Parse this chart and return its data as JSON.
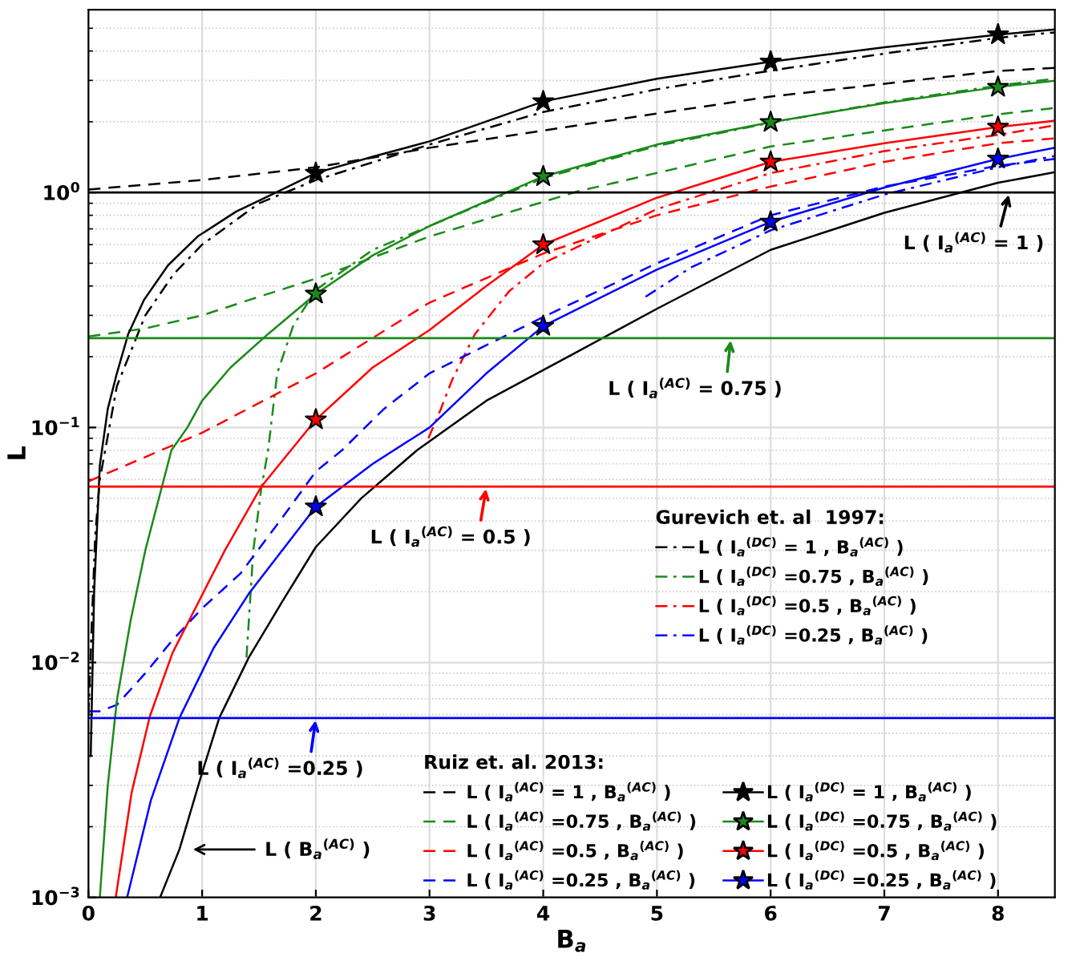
{
  "chart_data": {
    "type": "line",
    "xlabel": "B$_{a}$",
    "ylabel": "L",
    "xlim": [
      0,
      8.5
    ],
    "ylim": [
      0.001,
      6
    ],
    "xticks": [
      0,
      1,
      2,
      3,
      4,
      5,
      6,
      7,
      8
    ],
    "yticks": [
      {
        "value": 0.001,
        "label": "10$^{−3}$"
      },
      {
        "value": 0.01,
        "label": "10$^{−2}$"
      },
      {
        "value": 0.1,
        "label": "10$^{−1}$"
      },
      {
        "value": 1,
        "label": "10$^{0}$"
      }
    ],
    "log": "y",
    "grid": true,
    "legend": "bottom right",
    "annotations": [
      "Gurevich et. al  1997:",
      "Ruiz et. al. 2013:",
      {
        "text": "L ( I$_{a}$$^{(AC)}$ = 1 )",
        "x": 8.1,
        "y": 1
      },
      {
        "text": "L ( I$_{a}$$^{(AC)}$ = 0.75 )",
        "x": 5.65,
        "y": 0.24
      },
      {
        "text": "L ( I$_{a}$$^{(AC)}$ = 0.5 )",
        "x": 3.5,
        "y": 0.056
      },
      {
        "text": "L ( I$_{a}$$^{(AC)}$ =0.25 )",
        "x": 2.0,
        "y": 0.0058
      },
      "L ( B$_{a}$$^{(AC)}$ )"
    ],
    "ref_lines": [
      {
        "axis": "y",
        "value": 1,
        "color": "#000000"
      },
      {
        "axis": "y",
        "value": 0.24,
        "color": "#1a8a1a"
      },
      {
        "axis": "y",
        "value": 0.056,
        "color": "#ff0000"
      },
      {
        "axis": "y",
        "value": 0.0058,
        "color": "#0000ff"
      }
    ],
    "series": [
      {
        "name": "L ( I$_{a}$$^{(DC)}$ = 1 , B$_{a}$$^{(AC)}$ )",
        "color": "#000000",
        "line_style": "dashdot",
        "x": [
          0,
          0.03,
          0.06,
          0.1,
          0.25,
          0.5,
          0.75,
          1,
          1.5,
          2,
          3,
          4,
          5,
          6,
          7,
          8,
          8.5
        ],
        "values": [
          0.006,
          0.015,
          0.035,
          0.06,
          0.15,
          0.3,
          0.45,
          0.6,
          0.9,
          1.13,
          1.6,
          2.2,
          2.75,
          3.3,
          3.9,
          4.55,
          4.8
        ]
      },
      {
        "name": "L ( I$_{a}$$^{(DC)}$ =0.75 , B$_{a}$$^{(AC)}$ )",
        "color": "#1a8a1a",
        "line_style": "dashdot",
        "x": [
          1.39,
          1.45,
          1.52,
          1.58,
          1.66,
          1.8,
          2,
          2.5,
          3,
          4,
          5,
          6,
          7,
          8,
          8.5
        ],
        "values": [
          0.0105,
          0.03,
          0.055,
          0.08,
          0.17,
          0.27,
          0.385,
          0.57,
          0.72,
          1.15,
          1.58,
          1.98,
          2.42,
          2.85,
          3.05
        ]
      },
      {
        "name": "L ( I$_{a}$$^{(DC)}$ =0.5 , B$_{a}$$^{(AC)}$ )",
        "color": "#ff0000",
        "line_style": "dashdot",
        "x": [
          2.99,
          3.1,
          3.2,
          3.4,
          3.7,
          4,
          5,
          6,
          7,
          8,
          8.5
        ],
        "values": [
          0.09,
          0.12,
          0.16,
          0.25,
          0.38,
          0.5,
          0.85,
          1.21,
          1.5,
          1.76,
          1.93
        ]
      },
      {
        "name": "L ( I$_{a}$$^{(DC)}$ =0.25 , B$_{a}$$^{(AC)}$ )",
        "color": "#0000ff",
        "line_style": "dashdot",
        "x": [
          4.9,
          5.3,
          6,
          7,
          8,
          8.5
        ],
        "values": [
          0.36,
          0.48,
          0.69,
          0.98,
          1.28,
          1.43
        ]
      },
      {
        "name": "L ( I$_{a}$$^{(AC)}$ = 1 , B$_{a}$$^{(AC)}$ )",
        "color": "#000000",
        "line_style": "dashed",
        "x": [
          0,
          1,
          2,
          3,
          4.3,
          6,
          8,
          8.5
        ],
        "values": [
          1.03,
          1.13,
          1.28,
          1.55,
          1.93,
          2.56,
          3.29,
          3.39
        ]
      },
      {
        "name": "L ( I$_{a}$$^{(AC)}$ =0.75 , B$_{a}$$^{(AC)}$ )",
        "color": "#1a8a1a",
        "line_style": "dashed",
        "x": [
          0,
          0.5,
          1,
          1.5,
          2,
          3,
          4.3,
          6,
          8,
          8.5
        ],
        "values": [
          0.244,
          0.264,
          0.3,
          0.36,
          0.43,
          0.65,
          1.01,
          1.57,
          2.15,
          2.29
        ]
      },
      {
        "name": "L ( I$_{a}$$^{(AC)}$ =0.5 , B$_{a}$$^{(AC)}$ )",
        "color": "#ff0000",
        "line_style": "dashed",
        "x": [
          0,
          1,
          2,
          3,
          4,
          5,
          6,
          7,
          8,
          8.5
        ],
        "values": [
          0.059,
          0.095,
          0.17,
          0.34,
          0.55,
          0.8,
          1.06,
          1.35,
          1.62,
          1.7
        ]
      },
      {
        "name": "L ( I$_{a}$$^{(AC)}$ =0.25 , B$_{a}$$^{(AC)}$ )",
        "color": "#0000ff",
        "line_style": "dashed",
        "x": [
          0,
          0.1,
          0.25,
          0.5,
          0.73,
          1,
          1.34,
          1.7,
          2,
          2.23,
          2.6,
          3,
          4,
          5,
          6,
          7,
          8,
          8.5
        ],
        "values": [
          0.0062,
          0.0062,
          0.0066,
          0.009,
          0.0123,
          0.017,
          0.024,
          0.041,
          0.065,
          0.08,
          0.12,
          0.17,
          0.295,
          0.5,
          0.8,
          1.06,
          1.3,
          1.39
        ]
      },
      {
        "color": "#000000",
        "line_style": "solid",
        "x": [
          0.02,
          0.05,
          0.1,
          0.17,
          0.25,
          0.35,
          0.49,
          0.7,
          0.96,
          1.3,
          1.65,
          2,
          2.5,
          3,
          4,
          5,
          6,
          7,
          8,
          8.5
        ],
        "values": [
          0.004,
          0.02,
          0.069,
          0.12,
          0.17,
          0.25,
          0.35,
          0.49,
          0.65,
          0.83,
          1.0,
          1.21,
          1.42,
          1.65,
          2.44,
          3.05,
          3.6,
          4.15,
          4.7,
          4.94
        ]
      },
      {
        "color": "#1a8a1a",
        "line_style": "solid",
        "x": [
          0.1,
          0.17,
          0.25,
          0.37,
          0.5,
          0.73,
          0.87,
          1,
          1.25,
          1.58,
          2,
          2.5,
          3,
          4,
          5,
          6,
          7,
          8,
          8.5
        ],
        "values": [
          0.001,
          0.003,
          0.0069,
          0.015,
          0.03,
          0.08,
          0.1,
          0.13,
          0.18,
          0.25,
          0.37,
          0.54,
          0.72,
          1.17,
          1.6,
          1.99,
          2.4,
          2.81,
          2.99
        ]
      },
      {
        "color": "#ff0000",
        "line_style": "solid",
        "x": [
          0.24,
          0.38,
          0.54,
          0.74,
          0.94,
          1.2,
          1.52,
          2,
          2.5,
          3,
          3.5,
          4,
          5,
          6,
          7,
          8,
          8.5
        ],
        "values": [
          0.001,
          0.0028,
          0.0059,
          0.011,
          0.017,
          0.03,
          0.056,
          0.108,
          0.18,
          0.26,
          0.4,
          0.6,
          0.95,
          1.35,
          1.62,
          1.9,
          2.02
        ]
      },
      {
        "color": "#0000ff",
        "line_style": "solid",
        "x": [
          0.34,
          0.55,
          0.8,
          1.1,
          1.41,
          2,
          2.5,
          3,
          3.5,
          4,
          5,
          6,
          7,
          8,
          8.5
        ],
        "values": [
          0.001,
          0.0026,
          0.0058,
          0.0115,
          0.0196,
          0.046,
          0.07,
          0.1,
          0.17,
          0.27,
          0.47,
          0.75,
          1.05,
          1.39,
          1.55
        ]
      },
      {
        "name": "L ( I$_{a}$$^{(DC)}$ = 1 , B$_{a}$$^{(AC)}$ )",
        "type": "scatter",
        "color": "#000000",
        "marker": "star",
        "x": [
          2,
          4,
          6,
          8
        ],
        "values": [
          1.21,
          2.44,
          3.6,
          4.7
        ]
      },
      {
        "name": "L ( I$_{a}$$^{(DC)}$ =0.75 , B$_{a}$$^{(AC)}$ )",
        "type": "scatter",
        "color": "#1a8a1a",
        "marker": "star",
        "x": [
          2,
          4,
          6,
          8
        ],
        "values": [
          0.37,
          1.17,
          1.99,
          2.81
        ]
      },
      {
        "name": "L ( I$_{a}$$^{(DC)}$ =0.5 , B$_{a}$$^{(AC)}$ )",
        "type": "scatter",
        "color": "#ff0000",
        "marker": "star",
        "x": [
          2,
          4,
          6,
          8
        ],
        "values": [
          0.108,
          0.6,
          1.35,
          1.9
        ]
      },
      {
        "name": "L ( I$_{a}$$^{(DC)}$ =0.25 , B$_{a}$$^{(AC)}$ )",
        "type": "scatter",
        "color": "#0000ff",
        "marker": "star",
        "x": [
          2,
          4,
          6,
          8
        ],
        "values": [
          0.046,
          0.27,
          0.75,
          1.39
        ]
      },
      {
        "color": "#000000",
        "line_style": "solid",
        "x": [
          0.63,
          0.8,
          1.0,
          1.15,
          1.41,
          1.7,
          2,
          2.4,
          2.89,
          3.5,
          4.3,
          5,
          6,
          7,
          8,
          8.5
        ],
        "values": [
          0.001,
          0.0016,
          0.0034,
          0.0058,
          0.0105,
          0.018,
          0.031,
          0.05,
          0.08,
          0.13,
          0.21,
          0.32,
          0.57,
          0.82,
          1.1,
          1.22
        ]
      }
    ]
  }
}
